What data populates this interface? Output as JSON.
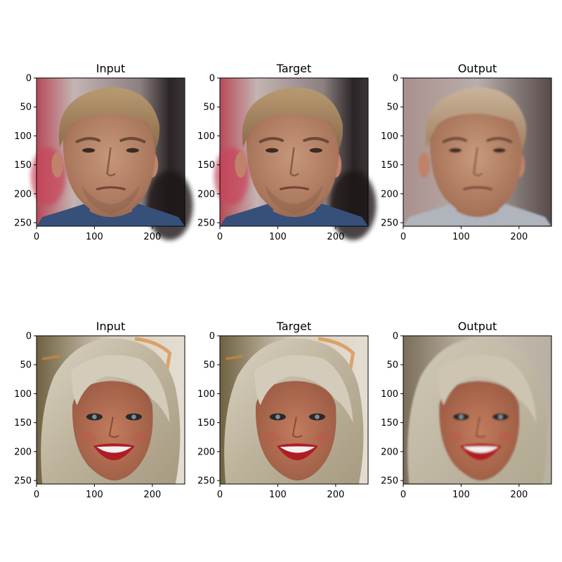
{
  "figure": {
    "rows": [
      {
        "subject": "man with short blond hair",
        "panels": [
          {
            "title": "Input",
            "variant": "sharp"
          },
          {
            "title": "Target",
            "variant": "sharp"
          },
          {
            "title": "Output",
            "variant": "smooth"
          }
        ]
      },
      {
        "subject": "woman with platinum blonde hair",
        "panels": [
          {
            "title": "Input",
            "variant": "sharp"
          },
          {
            "title": "Target",
            "variant": "sharp"
          },
          {
            "title": "Output",
            "variant": "smooth"
          }
        ]
      }
    ],
    "x_ticks": [
      0,
      100,
      200
    ],
    "y_ticks": [
      0,
      50,
      100,
      150,
      200,
      250
    ],
    "image_extent": [
      0,
      256
    ],
    "colors": {
      "man_skin": "#b98a6e",
      "man_hair": "#a8865e",
      "man_bg_left": "#c0505a",
      "man_bg_top": "#b9b3b1",
      "man_bg_right": "#2a2424",
      "man_shirt": "#3a4f78",
      "woman_skin": "#b06a4e",
      "woman_hair": "#cfc8b4",
      "woman_bg": "#6c5e44",
      "woman_lips": "#b21e26",
      "woman_bg_light": "#d8d2c4"
    }
  }
}
